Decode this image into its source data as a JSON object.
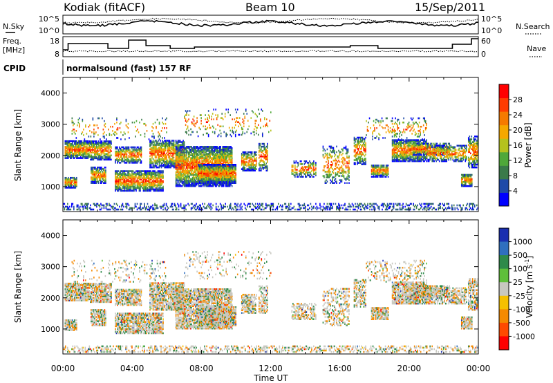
{
  "header": {
    "station": "Kodiak (fitACF)",
    "beam": "Beam 10",
    "date": "15/Sep/2011"
  },
  "colors": {
    "power_scale": [
      "#0000ff",
      "#1f4aa8",
      "#3a7a4a",
      "#4fa83a",
      "#b5c21e",
      "#f5a800",
      "#f57a00",
      "#ff3c00",
      "#ff0000"
    ],
    "velocity_scale": [
      "#1a2fb0",
      "#2f6fbf",
      "#2f8a4a",
      "#5fbf3a",
      "#c8c8c0",
      "#f5c000",
      "#f58a00",
      "#ff4a00",
      "#ff0000"
    ]
  },
  "chart_data": [
    {
      "type": "line",
      "panel": "noise",
      "left_label": "N.Sky",
      "right_label": "N.Search",
      "left_ticks": [
        "10^5",
        "10^0"
      ],
      "right_ticks": [
        "10^5",
        "10^0"
      ],
      "series": [
        {
          "name": "N.Sky",
          "style": "solid"
        },
        {
          "name": "N.Search",
          "style": "dotted"
        }
      ]
    },
    {
      "type": "line",
      "panel": "freq_nave",
      "left_label_lines": [
        "Freq.",
        "[MHz]"
      ],
      "right_label": "Nave",
      "left_ticks": [
        "18",
        "8"
      ],
      "right_ticks": [
        "60",
        "0"
      ],
      "series": [
        {
          "name": "Freq.",
          "style": "solid"
        },
        {
          "name": "Nave",
          "style": "dotted"
        }
      ]
    },
    {
      "type": "table",
      "panel": "cpid",
      "label": "CPID",
      "value": "normalsound (fast) 157 RF"
    },
    {
      "type": "heatmap",
      "panel": "power",
      "ylabel": "Slant Range [km]",
      "yticks": [
        "1000",
        "2000",
        "3000",
        "4000"
      ],
      "ylim": [
        200,
        4500
      ],
      "xlim": [
        "00:00",
        "00:00"
      ],
      "colorbar_label": "Power [dB]",
      "colorbar_ticks": [
        "4",
        "8",
        "12",
        "16",
        "20",
        "24",
        "28"
      ]
    },
    {
      "type": "heatmap",
      "panel": "velocity",
      "ylabel": "Slant Range [km]",
      "yticks": [
        "1000",
        "2000",
        "3000",
        "4000"
      ],
      "ylim": [
        200,
        4500
      ],
      "xticks": [
        "00:00",
        "04:00",
        "08:00",
        "12:00",
        "16:00",
        "20:00",
        "00:00"
      ],
      "xlabel": "Time UT",
      "colorbar_label": "Velocity [m s",
      "colorbar_label_sup": "-1",
      "colorbar_ticks": [
        "1000",
        "500",
        "100",
        "25",
        "-25",
        "-100",
        "-500",
        "-1000"
      ]
    }
  ]
}
